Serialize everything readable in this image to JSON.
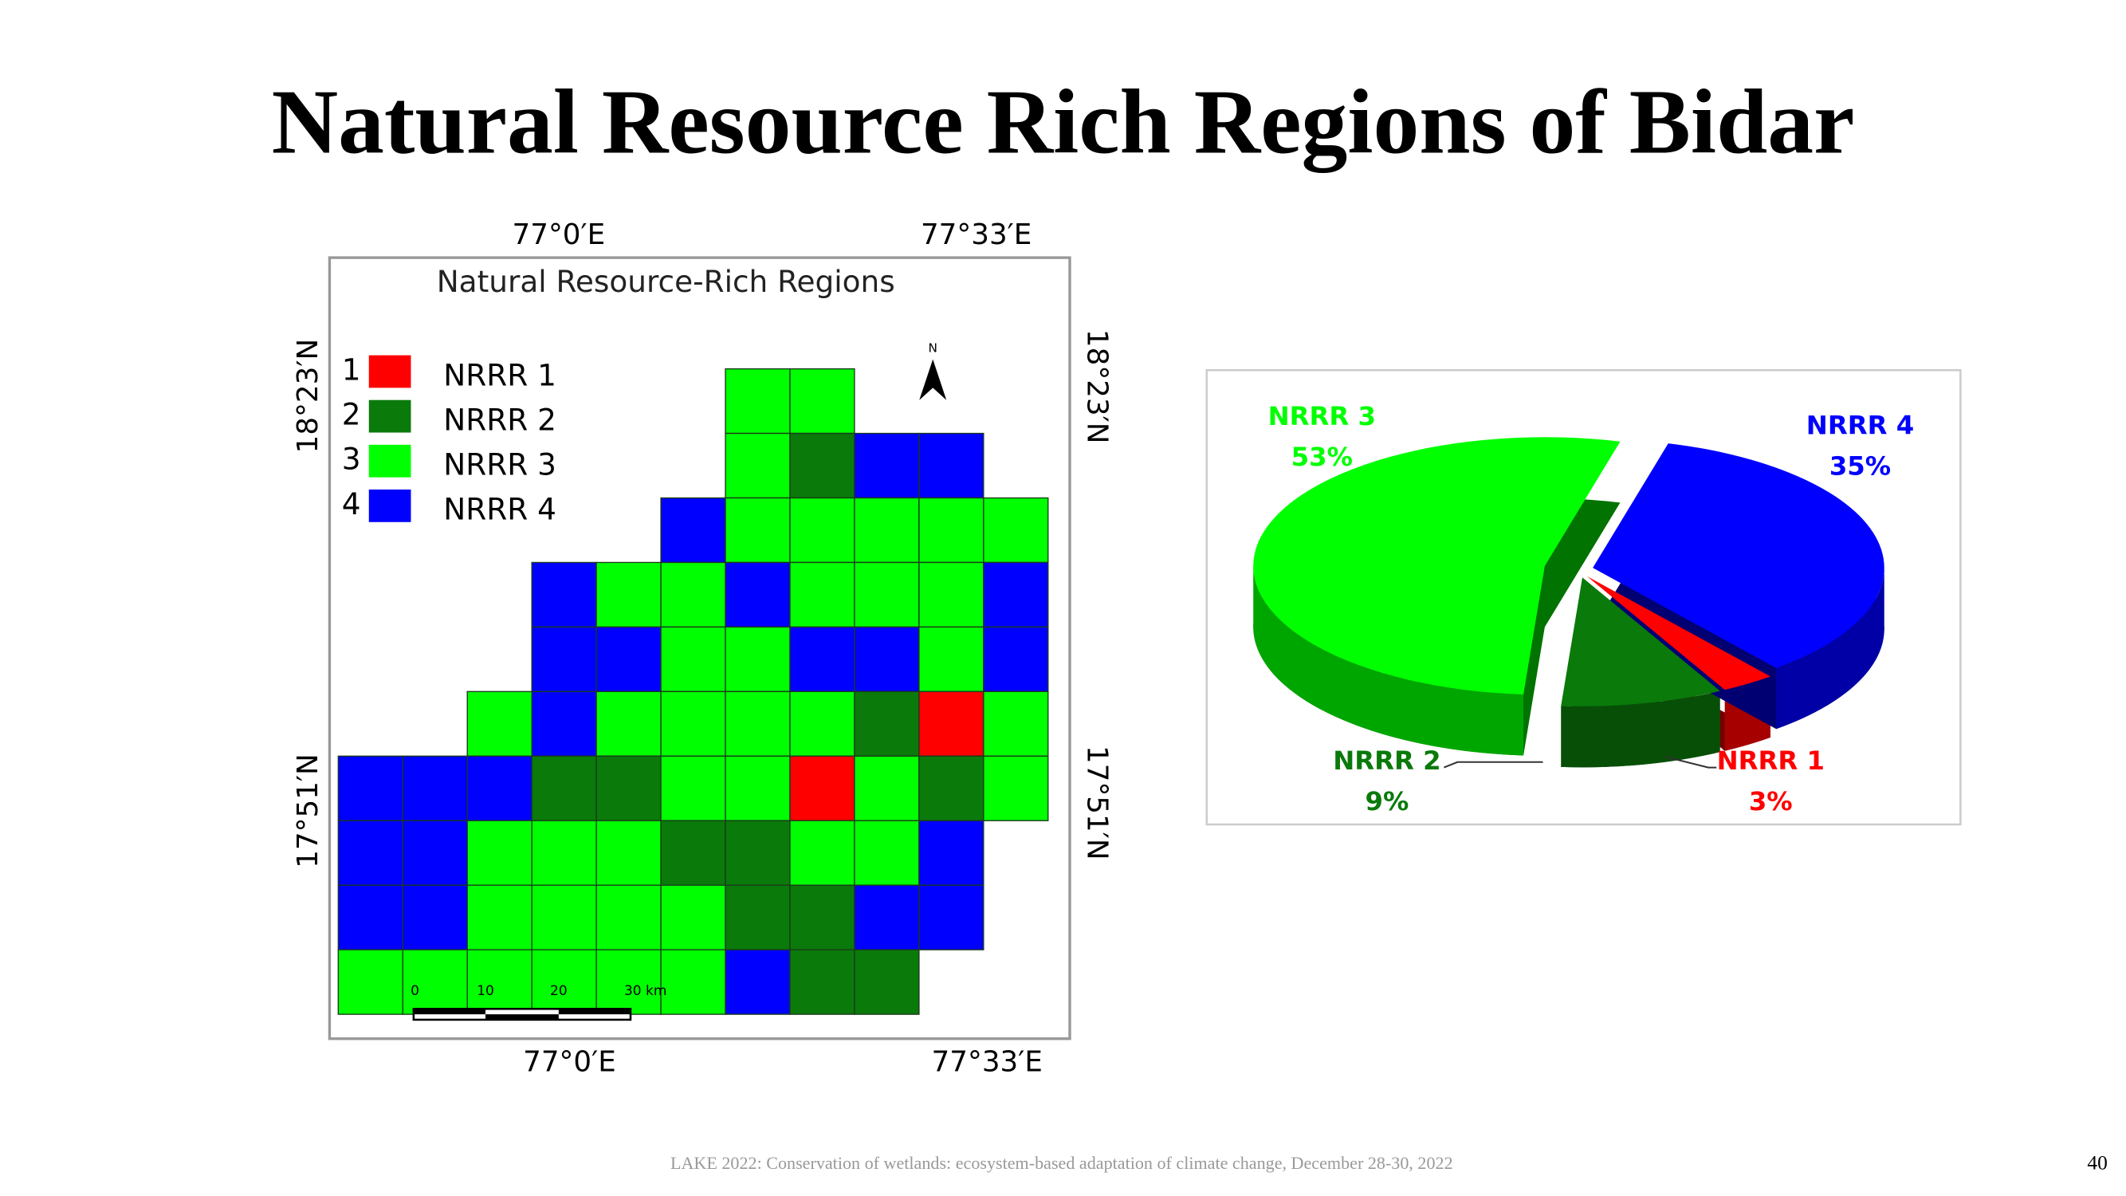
{
  "slide": {
    "title": "Natural Resource Rich Regions of Bidar",
    "footer": "LAKE 2022: Conservation of wetlands: ecosystem-based adaptation of climate change, December 28-30, 2022",
    "page_number": "40"
  },
  "map": {
    "title": "Natural Resource-Rich Regions",
    "longitudes": [
      "77°0′E",
      "77°33′E"
    ],
    "latitudes": [
      "18°23′N",
      "17°51′N"
    ],
    "legend": [
      {
        "number": "1",
        "label": "NRRR 1",
        "color": "#ff0000"
      },
      {
        "number": "2",
        "label": "NRRR 2",
        "color": "#0a7a0a"
      },
      {
        "number": "3",
        "label": "NRRR 3",
        "color": "#00ff00"
      },
      {
        "number": "4",
        "label": "NRRR 4",
        "color": "#0000ff"
      }
    ],
    "north": "N",
    "scale_labels": [
      "0",
      "10",
      "20",
      "30 km"
    ]
  },
  "chart_data": {
    "type": "pie",
    "categories": [
      "NRRR 1",
      "NRRR 2",
      "NRRR 3",
      "NRRR 4"
    ],
    "values": [
      3,
      9,
      53,
      35
    ],
    "value_labels": [
      "3%",
      "9%",
      "53%",
      "35%"
    ],
    "colors": [
      "#ff0000",
      "#0a7a0a",
      "#00ff00",
      "#0000ff"
    ]
  }
}
